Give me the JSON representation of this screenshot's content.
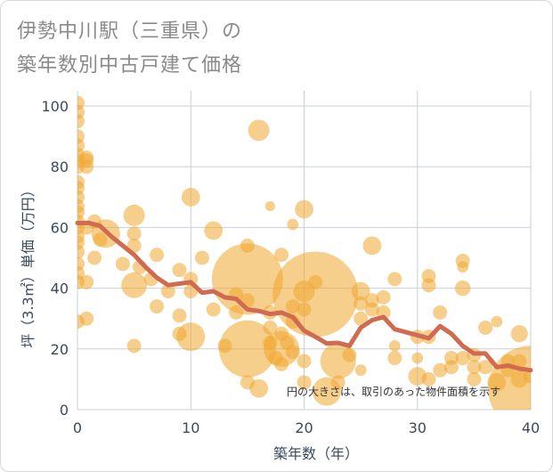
{
  "title_line1": "伊勢中川駅（三重県）の",
  "title_line2": "築年数別中古戸建て価格",
  "chart_data": {
    "type": "scatter",
    "title": "伊勢中川駅（三重県）の築年数別中古戸建て価格",
    "xlabel": "築年数（年）",
    "ylabel": "坪（3.3㎡）単価（万円）",
    "xlim": [
      0,
      40
    ],
    "ylim": [
      0,
      105
    ],
    "xticks": [
      0,
      10,
      20,
      30,
      40
    ],
    "yticks": [
      0,
      20,
      40,
      60,
      80,
      100
    ],
    "note": "円の大きさは、取引のあった物件面積を示す",
    "colors": {
      "bubble": "#f0a830",
      "line": "#d06a50",
      "grid": "#c8d0da"
    },
    "bubbles": [
      {
        "x": 0,
        "y": 101,
        "s": 1
      },
      {
        "x": 0,
        "y": 98,
        "s": 1
      },
      {
        "x": 0,
        "y": 95,
        "s": 1
      },
      {
        "x": 0,
        "y": 90,
        "s": 1
      },
      {
        "x": 0,
        "y": 87,
        "s": 1
      },
      {
        "x": 0,
        "y": 84,
        "s": 1
      },
      {
        "x": 0,
        "y": 82,
        "s": 1
      },
      {
        "x": 0,
        "y": 80,
        "s": 1
      },
      {
        "x": 0,
        "y": 75,
        "s": 1
      },
      {
        "x": 0,
        "y": 73,
        "s": 1
      },
      {
        "x": 0,
        "y": 70,
        "s": 1
      },
      {
        "x": 0,
        "y": 67,
        "s": 1
      },
      {
        "x": 0,
        "y": 65,
        "s": 1
      },
      {
        "x": 0,
        "y": 62,
        "s": 1
      },
      {
        "x": 0,
        "y": 60,
        "s": 1
      },
      {
        "x": 0,
        "y": 57,
        "s": 1
      },
      {
        "x": 0,
        "y": 55,
        "s": 1
      },
      {
        "x": 0,
        "y": 52,
        "s": 1
      },
      {
        "x": 0,
        "y": 48,
        "s": 1
      },
      {
        "x": 0,
        "y": 45,
        "s": 1
      },
      {
        "x": 0,
        "y": 42,
        "s": 1
      },
      {
        "x": 0,
        "y": 29,
        "s": 1
      },
      {
        "x": 0.8,
        "y": 83,
        "s": 1
      },
      {
        "x": 0.8,
        "y": 82,
        "s": 1
      },
      {
        "x": 0.8,
        "y": 80,
        "s": 1
      },
      {
        "x": 0.8,
        "y": 60,
        "s": 1
      },
      {
        "x": 0.8,
        "y": 42,
        "s": 1
      },
      {
        "x": 0.8,
        "y": 30,
        "s": 1
      },
      {
        "x": 1.5,
        "y": 62,
        "s": 1
      },
      {
        "x": 1.5,
        "y": 50,
        "s": 1
      },
      {
        "x": 2,
        "y": 56,
        "s": 1
      },
      {
        "x": 2.5,
        "y": 58,
        "s": 2
      },
      {
        "x": 4,
        "y": 48,
        "s": 1
      },
      {
        "x": 5,
        "y": 64,
        "s": 1.5
      },
      {
        "x": 5,
        "y": 58,
        "s": 1
      },
      {
        "x": 5,
        "y": 54,
        "s": 1
      },
      {
        "x": 5,
        "y": 41,
        "s": 1.8
      },
      {
        "x": 5,
        "y": 21,
        "s": 1
      },
      {
        "x": 5.5,
        "y": 47,
        "s": 1
      },
      {
        "x": 6.5,
        "y": 43,
        "s": 1
      },
      {
        "x": 7,
        "y": 51,
        "s": 1
      },
      {
        "x": 7,
        "y": 34,
        "s": 1
      },
      {
        "x": 8,
        "y": 39,
        "s": 1
      },
      {
        "x": 9,
        "y": 46,
        "s": 1
      },
      {
        "x": 9,
        "y": 31,
        "s": 1
      },
      {
        "x": 9,
        "y": 25,
        "s": 1
      },
      {
        "x": 10,
        "y": 70,
        "s": 1.3
      },
      {
        "x": 10,
        "y": 43,
        "s": 1
      },
      {
        "x": 10,
        "y": 39,
        "s": 1
      },
      {
        "x": 10,
        "y": 24,
        "s": 2
      },
      {
        "x": 11,
        "y": 50,
        "s": 1
      },
      {
        "x": 12,
        "y": 59,
        "s": 1.3
      },
      {
        "x": 12,
        "y": 33,
        "s": 1
      },
      {
        "x": 13,
        "y": 21,
        "s": 1
      },
      {
        "x": 14,
        "y": 38,
        "s": 1
      },
      {
        "x": 14,
        "y": 32,
        "s": 1
      },
      {
        "x": 15,
        "y": 54,
        "s": 1
      },
      {
        "x": 15,
        "y": 43,
        "s": 5
      },
      {
        "x": 15,
        "y": 36,
        "s": 1
      },
      {
        "x": 15,
        "y": 20,
        "s": 4
      },
      {
        "x": 15,
        "y": 9,
        "s": 1
      },
      {
        "x": 16,
        "y": 92,
        "s": 1.5
      },
      {
        "x": 16,
        "y": 7,
        "s": 1.3
      },
      {
        "x": 17,
        "y": 67,
        "s": 0.7
      },
      {
        "x": 17,
        "y": 32,
        "s": 1
      },
      {
        "x": 17,
        "y": 27,
        "s": 1
      },
      {
        "x": 17,
        "y": 22,
        "s": 1
      },
      {
        "x": 17.5,
        "y": 17,
        "s": 1
      },
      {
        "x": 18,
        "y": 51,
        "s": 1
      },
      {
        "x": 18,
        "y": 25,
        "s": 1
      },
      {
        "x": 18,
        "y": 20,
        "s": 2.5
      },
      {
        "x": 18,
        "y": 15,
        "s": 1
      },
      {
        "x": 18.5,
        "y": 22,
        "s": 1
      },
      {
        "x": 19,
        "y": 61,
        "s": 0.8
      },
      {
        "x": 19,
        "y": 34,
        "s": 1
      },
      {
        "x": 19,
        "y": 29,
        "s": 1
      },
      {
        "x": 19,
        "y": 19,
        "s": 1
      },
      {
        "x": 20,
        "y": 66,
        "s": 1.3
      },
      {
        "x": 20,
        "y": 39,
        "s": 1.5
      },
      {
        "x": 20,
        "y": 33,
        "s": 1
      },
      {
        "x": 20,
        "y": 16,
        "s": 1
      },
      {
        "x": 20,
        "y": 9,
        "s": 1
      },
      {
        "x": 21,
        "y": 38,
        "s": 6
      },
      {
        "x": 21,
        "y": 42,
        "s": 1
      },
      {
        "x": 22,
        "y": 6,
        "s": 2
      },
      {
        "x": 23,
        "y": 16,
        "s": 2.5
      },
      {
        "x": 23,
        "y": 9,
        "s": 1
      },
      {
        "x": 24,
        "y": 18,
        "s": 1
      },
      {
        "x": 25,
        "y": 39,
        "s": 1.3
      },
      {
        "x": 25,
        "y": 35,
        "s": 1
      },
      {
        "x": 25,
        "y": 30,
        "s": 1
      },
      {
        "x": 25,
        "y": 13,
        "s": 0.8
      },
      {
        "x": 26,
        "y": 54,
        "s": 1.3
      },
      {
        "x": 26,
        "y": 36,
        "s": 1
      },
      {
        "x": 26,
        "y": 33,
        "s": 1
      },
      {
        "x": 27,
        "y": 37,
        "s": 1
      },
      {
        "x": 27,
        "y": 32,
        "s": 1
      },
      {
        "x": 28,
        "y": 43,
        "s": 1
      },
      {
        "x": 28,
        "y": 21,
        "s": 0.8
      },
      {
        "x": 28,
        "y": 17,
        "s": 1
      },
      {
        "x": 30,
        "y": 24,
        "s": 1
      },
      {
        "x": 30,
        "y": 17,
        "s": 0.8
      },
      {
        "x": 30,
        "y": 11,
        "s": 1.3
      },
      {
        "x": 31,
        "y": 44,
        "s": 1
      },
      {
        "x": 31,
        "y": 41,
        "s": 1
      },
      {
        "x": 31,
        "y": 24,
        "s": 1
      },
      {
        "x": 31,
        "y": 10,
        "s": 1
      },
      {
        "x": 32,
        "y": 32,
        "s": 1
      },
      {
        "x": 32,
        "y": 13,
        "s": 1
      },
      {
        "x": 33,
        "y": 17,
        "s": 1
      },
      {
        "x": 33,
        "y": 14,
        "s": 1
      },
      {
        "x": 34,
        "y": 49,
        "s": 1
      },
      {
        "x": 34,
        "y": 47,
        "s": 0.8
      },
      {
        "x": 34,
        "y": 40,
        "s": 1.1
      },
      {
        "x": 34,
        "y": 17,
        "s": 1
      },
      {
        "x": 35,
        "y": 18,
        "s": 1
      },
      {
        "x": 35,
        "y": 14,
        "s": 1
      },
      {
        "x": 35,
        "y": 10,
        "s": 1
      },
      {
        "x": 36,
        "y": 27,
        "s": 1
      },
      {
        "x": 36,
        "y": 14,
        "s": 1
      },
      {
        "x": 37,
        "y": 29,
        "s": 0.8
      },
      {
        "x": 37,
        "y": 9,
        "s": 1.3
      },
      {
        "x": 38,
        "y": 16,
        "s": 1
      },
      {
        "x": 38,
        "y": 13,
        "s": 1
      },
      {
        "x": 39,
        "y": 25,
        "s": 1.2
      },
      {
        "x": 39,
        "y": 16,
        "s": 1
      },
      {
        "x": 39,
        "y": 10,
        "s": 1.2
      },
      {
        "x": 40,
        "y": 11,
        "s": 1
      },
      {
        "x": 40,
        "y": 7,
        "s": 6
      }
    ],
    "trend_line": {
      "x": [
        0,
        1,
        2,
        3,
        4,
        5,
        6,
        7,
        8,
        9,
        10,
        11,
        12,
        13,
        14,
        15,
        16,
        17,
        18,
        19,
        20,
        21,
        22,
        23,
        24,
        25,
        26,
        27,
        28,
        29,
        30,
        31,
        32,
        33,
        34,
        35,
        36,
        37,
        38,
        39,
        40
      ],
      "y": [
        61.5,
        61.5,
        60.5,
        57,
        54,
        51,
        47,
        43.5,
        41,
        41.5,
        42,
        38.5,
        39,
        37,
        36.5,
        33,
        32.5,
        31.5,
        32,
        30.5,
        26,
        24,
        21.8,
        22,
        21,
        27,
        29.5,
        30.5,
        26.5,
        25.5,
        24.5,
        23.5,
        27.5,
        25,
        21,
        18.5,
        18.5,
        14,
        14.5,
        13.5,
        13
      ]
    }
  }
}
